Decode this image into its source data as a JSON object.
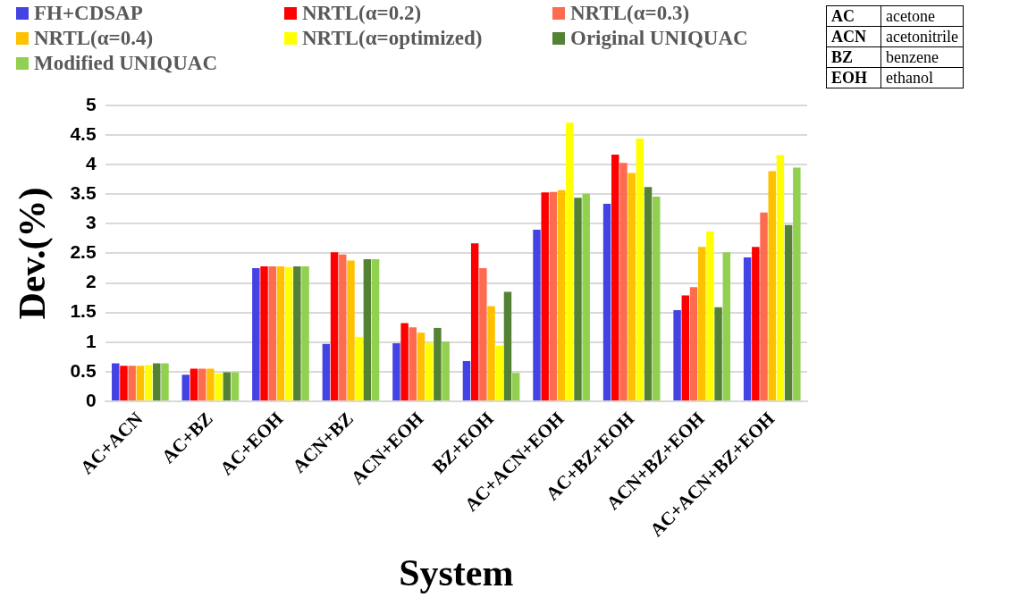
{
  "chart_data": {
    "type": "bar",
    "xlabel": "System",
    "ylabel": "Dev.(%)",
    "categories": [
      "AC+ACN",
      "AC+BZ",
      "AC+EOH",
      "ACN+BZ",
      "ACN+EOH",
      "BZ+EOH",
      "AC+ACN+EOH",
      "AC+BZ+EOH",
      "ACN+BZ+EOH",
      "AC+ACN+BZ+EOH"
    ],
    "series": [
      {
        "name": "FH+CDSAP",
        "color": "#4343e3",
        "values": [
          0.64,
          0.45,
          2.25,
          0.97,
          0.98,
          0.68,
          2.9,
          3.34,
          1.54,
          2.43
        ]
      },
      {
        "name": "NRTL(α=0.2)",
        "color": "#ff0000",
        "values": [
          0.6,
          0.55,
          2.28,
          2.52,
          1.32,
          2.67,
          3.53,
          4.17,
          1.79,
          2.61
        ]
      },
      {
        "name": "NRTL(α=0.3)",
        "color": "#ff6b4f",
        "values": [
          0.6,
          0.55,
          2.28,
          2.48,
          1.25,
          2.25,
          3.54,
          4.03,
          1.93,
          3.19
        ]
      },
      {
        "name": "NRTL(α=0.4)",
        "color": "#ffc000",
        "values": [
          0.6,
          0.55,
          2.28,
          2.38,
          1.16,
          1.61,
          3.57,
          3.86,
          2.61,
          3.89
        ]
      },
      {
        "name": "NRTL(α=optimized)",
        "color": "#ffff00",
        "values": [
          0.61,
          0.47,
          2.27,
          1.09,
          0.99,
          0.94,
          4.71,
          4.44,
          2.87,
          4.16
        ]
      },
      {
        "name": "Original UNIQUAC",
        "color": "#548235",
        "values": [
          0.64,
          0.49,
          2.28,
          2.4,
          1.24,
          1.85,
          3.44,
          3.62,
          1.59,
          2.98
        ]
      },
      {
        "name": "Modified UNIQUAC",
        "color": "#92d050",
        "values": [
          0.64,
          0.49,
          2.28,
          2.4,
          1.01,
          0.48,
          3.51,
          3.46,
          2.52,
          3.95
        ]
      }
    ],
    "ylim": [
      0,
      5
    ],
    "yticks": [
      0,
      0.5,
      1,
      1.5,
      2,
      2.5,
      3,
      3.5,
      4,
      4.5,
      5
    ],
    "grid": "y",
    "legend": "top",
    "annotations": [
      "AC",
      "acetone",
      "ACN",
      "acetonitrile",
      "BZ",
      "benzene",
      "EOH",
      "ethanol"
    ]
  }
}
